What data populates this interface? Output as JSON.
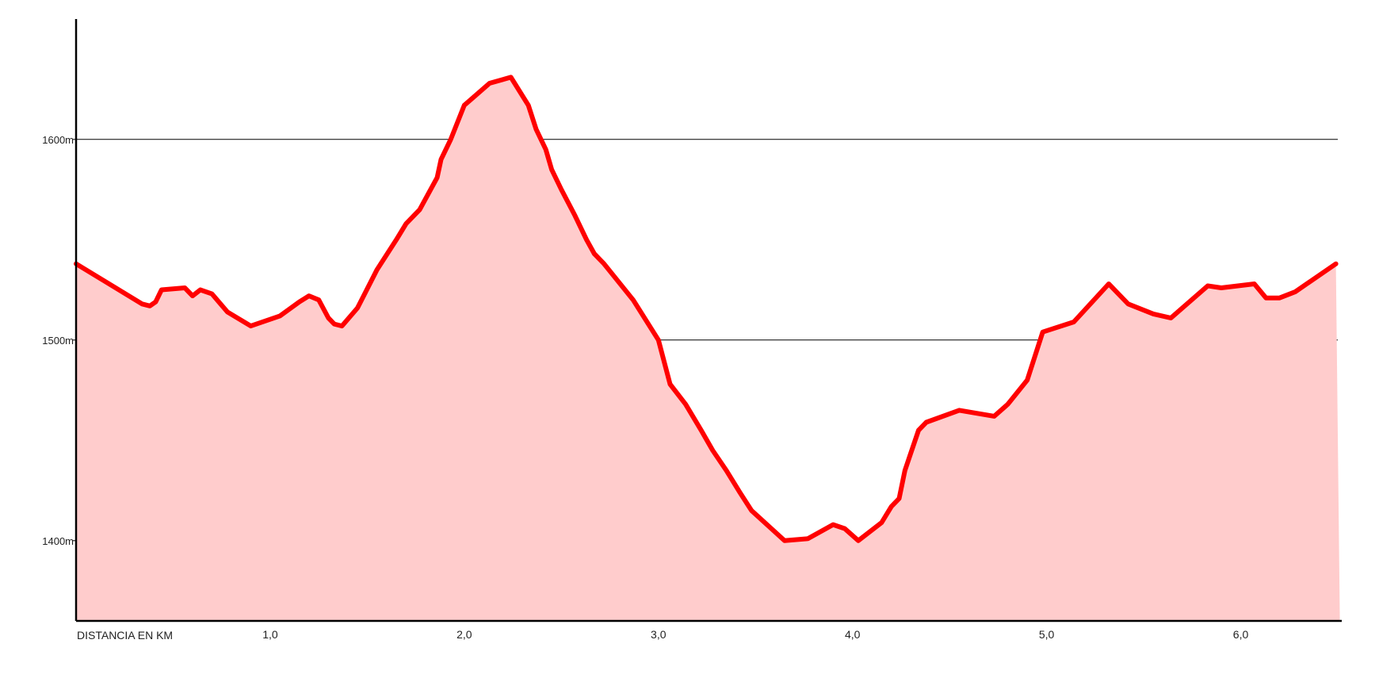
{
  "chart_data": {
    "type": "area",
    "title": "",
    "xlabel": "DISTANCIA EN KM",
    "ylabel": "",
    "xlim": [
      0,
      6.5
    ],
    "ylim": [
      1360,
      1660
    ],
    "grid": true,
    "legend": "none",
    "x_ticks": [
      {
        "value": 1,
        "label": "1,0"
      },
      {
        "value": 2,
        "label": "2,0"
      },
      {
        "value": 3,
        "label": "3,0"
      },
      {
        "value": 4,
        "label": "4,0"
      },
      {
        "value": 5,
        "label": "5,0"
      },
      {
        "value": 6,
        "label": "6,0"
      }
    ],
    "y_ticks": [
      {
        "value": 1400,
        "label": "1400m"
      },
      {
        "value": 1500,
        "label": "1500m"
      },
      {
        "value": 1600,
        "label": "1600m"
      }
    ],
    "colors": {
      "line": "#ff0000",
      "fill": "#ffcccc",
      "axis": "#000000",
      "grid": "#000000"
    },
    "series": [
      {
        "x": [
          0.0,
          0.34,
          0.38,
          0.41,
          0.44,
          0.56,
          0.6,
          0.64,
          0.7,
          0.78,
          0.9,
          1.05,
          1.15,
          1.2,
          1.25,
          1.3,
          1.33,
          1.37,
          1.45,
          1.55,
          1.65,
          1.7,
          1.77,
          1.86,
          1.88,
          1.93,
          2.0,
          2.13,
          2.24,
          2.33,
          2.37,
          2.42,
          2.45,
          2.5,
          2.57,
          2.63,
          2.67,
          2.72,
          2.87,
          3.0,
          3.06,
          3.14,
          3.22,
          3.28,
          3.35,
          3.42,
          3.48,
          3.65,
          3.77,
          3.9,
          3.96,
          4.03,
          4.15,
          4.2,
          4.24,
          4.27,
          4.34,
          4.38,
          4.55,
          4.73,
          4.8,
          4.9,
          4.98,
          5.14,
          5.32,
          5.42,
          5.55,
          5.64,
          5.83,
          5.9,
          6.07,
          6.13,
          6.2,
          6.28,
          6.49
        ],
        "values": [
          1538,
          1518,
          1517,
          1519,
          1525,
          1526,
          1522,
          1525,
          1523,
          1514,
          1507,
          1512,
          1519,
          1522,
          1520,
          1511,
          1508,
          1507,
          1516,
          1535,
          1550,
          1558,
          1565,
          1581,
          1590,
          1600,
          1617,
          1628,
          1631,
          1617,
          1605,
          1595,
          1585,
          1575,
          1562,
          1550,
          1543,
          1538,
          1520,
          1500,
          1478,
          1468,
          1455,
          1445,
          1435,
          1424,
          1415,
          1400,
          1401,
          1408,
          1406,
          1400,
          1409,
          1417,
          1421,
          1435,
          1455,
          1459,
          1465,
          1462,
          1468,
          1480,
          1504,
          1509,
          1528,
          1518,
          1513,
          1511,
          1527,
          1526,
          1528,
          1521,
          1521,
          1524,
          1538
        ]
      }
    ]
  }
}
